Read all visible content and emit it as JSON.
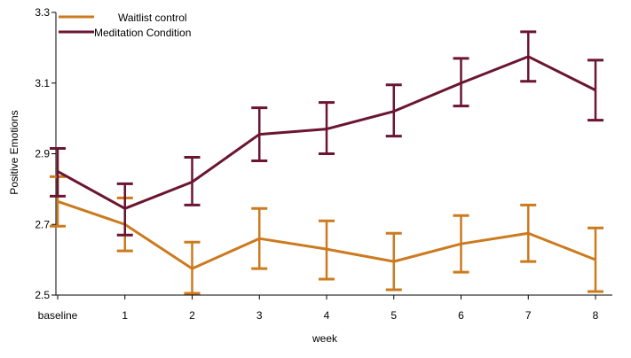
{
  "chart_data": {
    "type": "line",
    "title": "",
    "xlabel": "week",
    "ylabel": "Positive Emotions",
    "categories": [
      "baseline",
      "1",
      "2",
      "3",
      "4",
      "5",
      "6",
      "7",
      "8"
    ],
    "ylim": [
      2.5,
      3.3
    ],
    "yticks": [
      "2.5",
      "2.7",
      "2.9",
      "3.1",
      "3.3"
    ],
    "grid": false,
    "legend": "top-left",
    "error_bars": true,
    "series": [
      {
        "name": "Waitlist control",
        "color": "#cc7a1f",
        "values": [
          2.765,
          2.7,
          2.575,
          2.66,
          2.63,
          2.595,
          2.645,
          2.675,
          2.6
        ],
        "lower": [
          2.695,
          2.625,
          2.505,
          2.575,
          2.545,
          2.515,
          2.565,
          2.595,
          2.51
        ],
        "upper": [
          2.835,
          2.775,
          2.65,
          2.745,
          2.71,
          2.675,
          2.725,
          2.755,
          2.69
        ]
      },
      {
        "name": "Meditation Condition",
        "color": "#6b1530",
        "values": [
          2.85,
          2.745,
          2.82,
          2.955,
          2.97,
          3.02,
          3.1,
          3.175,
          3.08
        ],
        "lower": [
          2.78,
          2.67,
          2.755,
          2.88,
          2.9,
          2.95,
          3.035,
          3.105,
          2.995
        ],
        "upper": [
          2.915,
          2.815,
          2.89,
          3.03,
          3.045,
          3.095,
          3.17,
          3.245,
          3.165
        ]
      }
    ]
  }
}
